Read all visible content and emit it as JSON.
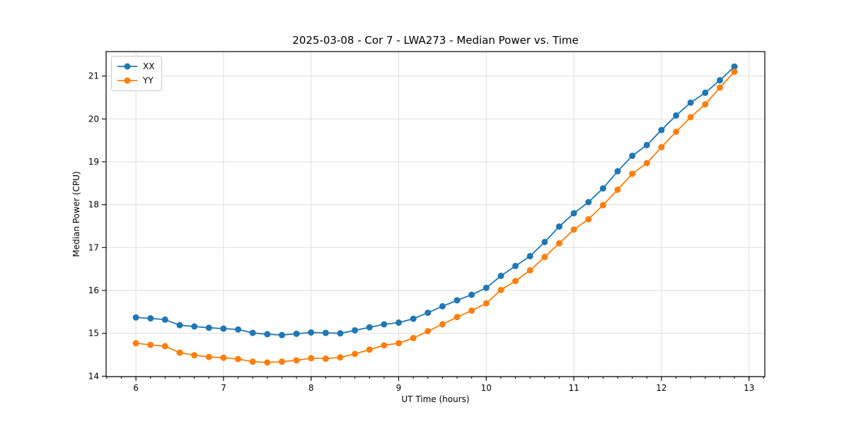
{
  "figure": {
    "background": "#ffffff",
    "spine_color": "#000000",
    "grid_color": "#dedede",
    "tick_color": "#000000"
  },
  "chart_data": {
    "type": "line",
    "title": "2025-03-08 - Cor 7 - LWA273 - Median Power vs. Time",
    "xlabel": "UT Time (hours)",
    "ylabel": "Median Power (CPU)",
    "xlim": [
      5.66,
      13.18
    ],
    "ylim": [
      13.99,
      21.57
    ],
    "xticks": [
      6,
      7,
      8,
      9,
      10,
      11,
      12,
      13
    ],
    "yticks": [
      14,
      15,
      16,
      17,
      18,
      19,
      20,
      21
    ],
    "x_minor_step": 0.1666667,
    "grid": "major",
    "legend_position": "upper-left",
    "x": [
      6.0,
      6.167,
      6.333,
      6.5,
      6.667,
      6.833,
      7.0,
      7.167,
      7.333,
      7.5,
      7.667,
      7.833,
      8.0,
      8.167,
      8.333,
      8.5,
      8.667,
      8.833,
      9.0,
      9.167,
      9.333,
      9.5,
      9.667,
      9.833,
      10.0,
      10.167,
      10.333,
      10.5,
      10.667,
      10.833,
      11.0,
      11.167,
      11.333,
      11.5,
      11.667,
      11.833,
      12.0,
      12.167,
      12.333,
      12.5,
      12.667,
      12.833
    ],
    "series": [
      {
        "name": "XX",
        "color": "#1f77b4",
        "values": [
          15.37,
          15.35,
          15.32,
          15.19,
          15.16,
          15.13,
          15.11,
          15.09,
          15.01,
          14.98,
          14.96,
          14.99,
          15.02,
          15.01,
          15.0,
          15.07,
          15.14,
          15.21,
          15.25,
          15.34,
          15.48,
          15.63,
          15.77,
          15.9,
          16.06,
          16.34,
          16.57,
          16.8,
          17.13,
          17.49,
          17.8,
          18.06,
          18.38,
          18.78,
          19.14,
          19.39,
          19.74,
          20.08,
          20.38,
          20.61,
          20.9,
          21.22
        ]
      },
      {
        "name": "YY",
        "color": "#ff7f0e",
        "values": [
          14.77,
          14.73,
          14.7,
          14.55,
          14.49,
          14.45,
          14.43,
          14.4,
          14.34,
          14.32,
          14.34,
          14.37,
          14.42,
          14.41,
          14.44,
          14.52,
          14.62,
          14.72,
          14.77,
          14.89,
          15.05,
          15.21,
          15.38,
          15.53,
          15.7,
          16.01,
          16.22,
          16.47,
          16.78,
          17.1,
          17.42,
          17.66,
          17.99,
          18.35,
          18.72,
          18.97,
          19.34,
          19.7,
          20.04,
          20.34,
          20.73,
          21.1
        ]
      }
    ]
  }
}
